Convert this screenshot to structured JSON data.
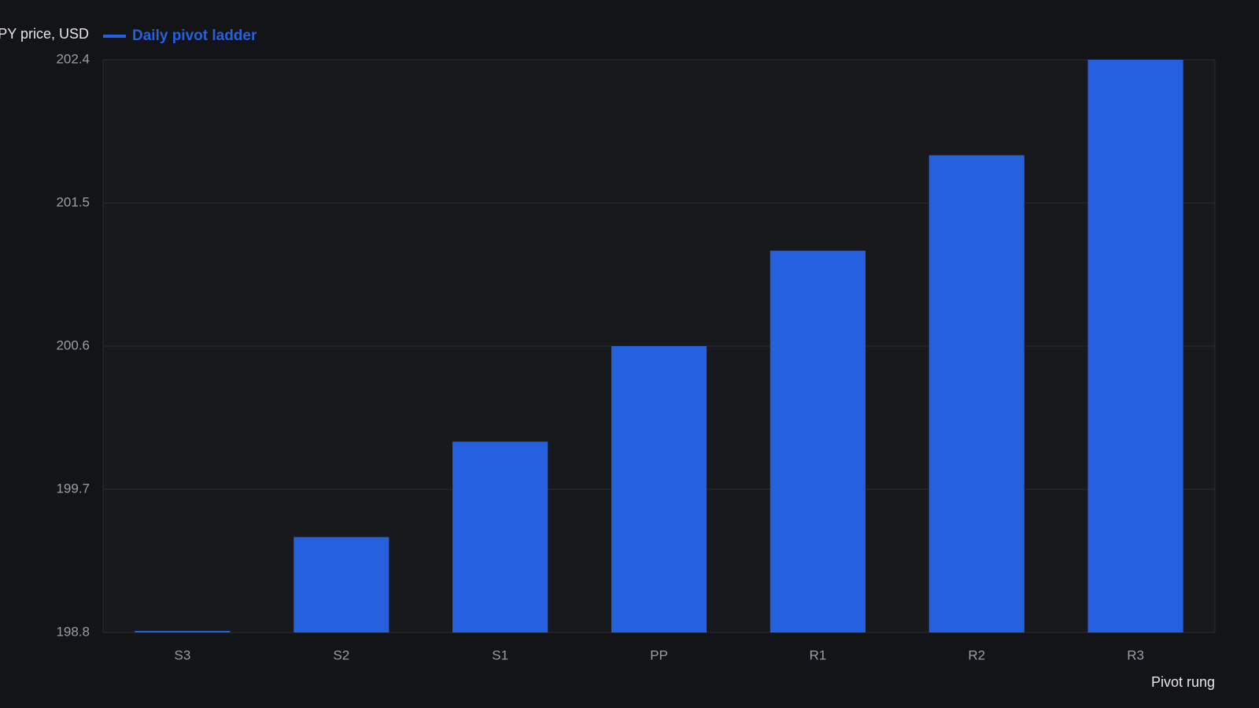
{
  "chart_data": {
    "type": "bar",
    "legend_label": "Daily pivot ladder",
    "y_label": "SPY price, USD",
    "x_label": "Pivot rung",
    "categories": [
      "S3",
      "S2",
      "S1",
      "PP",
      "R1",
      "R2",
      "R3"
    ],
    "series": [
      {
        "name": "Daily pivot ladder",
        "color": "#2560de",
        "values": [
          198.8,
          199.4,
          200.0,
          200.6,
          201.2,
          201.8,
          202.4
        ]
      }
    ],
    "ylim": [
      198.8,
      202.4
    ],
    "yticks": [
      198.8,
      199.7,
      200.6,
      201.5,
      202.4
    ],
    "grid": true,
    "legend": "top-left"
  }
}
